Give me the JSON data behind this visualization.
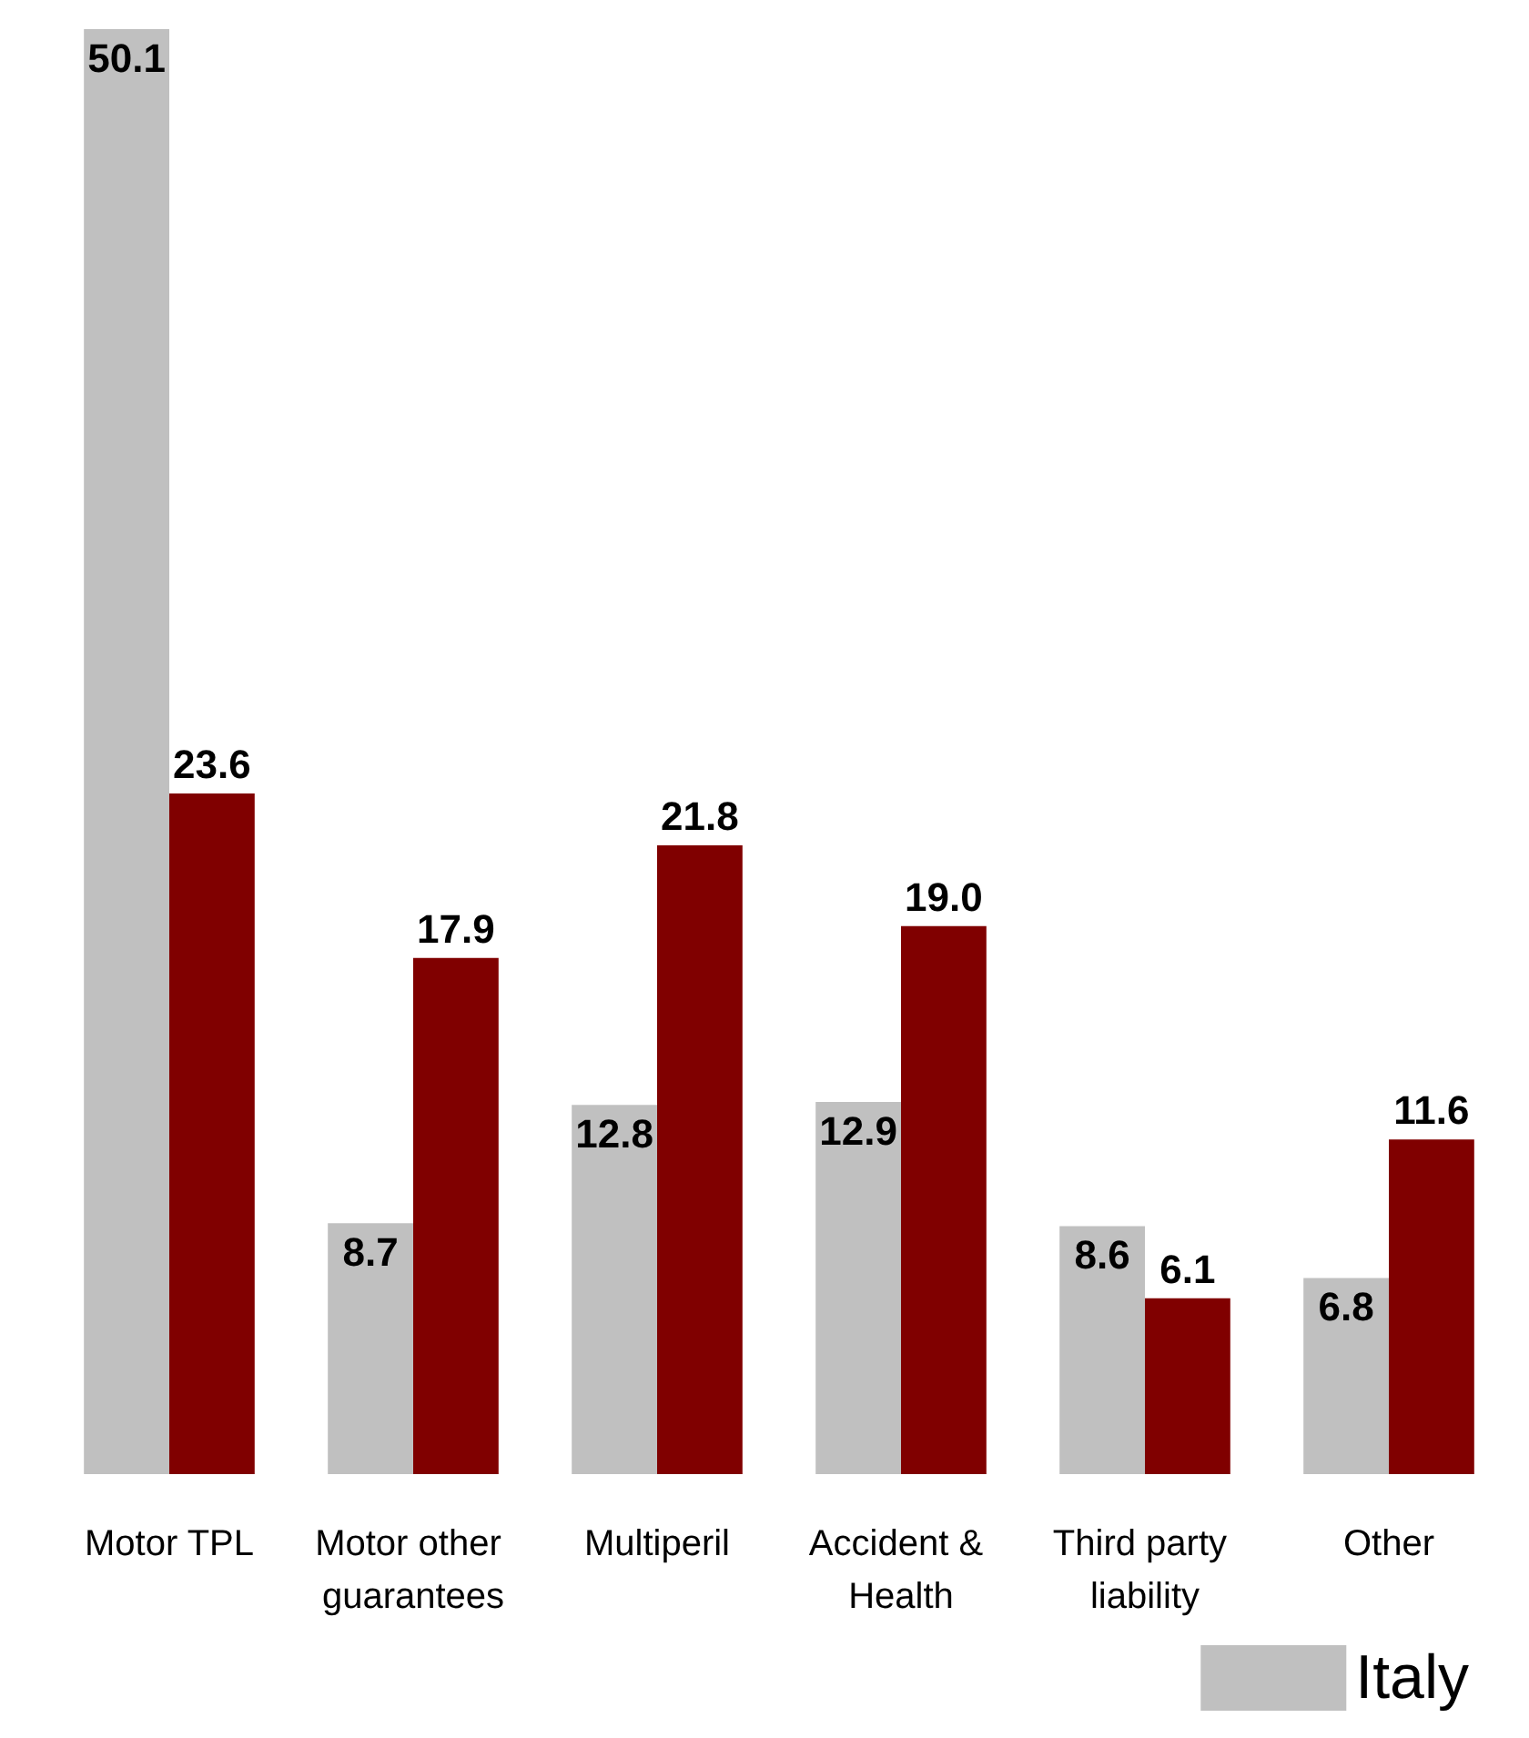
{
  "chart_data": {
    "type": "bar",
    "categories": [
      "Motor TPL",
      "Motor other guarantees",
      "Multiperil",
      "Accident & Health",
      "Third party liability",
      "Other"
    ],
    "series": [
      {
        "name": "Italy",
        "color": "#c0c0c0",
        "values": [
          50.1,
          8.7,
          12.8,
          12.9,
          8.6,
          6.8
        ],
        "value_labels": [
          "50.1",
          "8.7",
          "12.8",
          "12.9",
          "8.6",
          "6.8"
        ]
      },
      {
        "color": "#800000",
        "values": [
          23.6,
          17.9,
          21.8,
          19.0,
          6.1,
          11.6
        ],
        "value_labels": [
          "23.6",
          "17.9",
          "21.8",
          "19.0",
          "6.1",
          "11.6"
        ]
      }
    ],
    "grid": false,
    "legend": "bottom right"
  }
}
